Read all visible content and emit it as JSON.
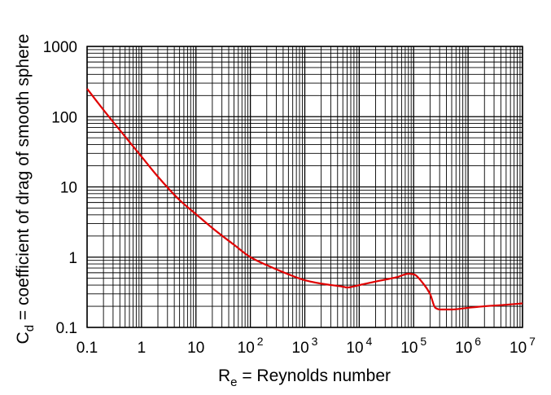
{
  "chart_data": {
    "type": "line",
    "xlabel": {
      "main": "R",
      "sub": "e",
      "rest": " = Reynolds number"
    },
    "ylabel": {
      "main": "C",
      "sub": "d",
      "rest": " = coefficient of drag of smooth sphere"
    },
    "x_scale": "log",
    "y_scale": "log",
    "xlim": [
      0.1,
      10000000
    ],
    "ylim": [
      0.1,
      1000
    ],
    "grid": true,
    "x_ticks": [
      {
        "value": 0.1,
        "base": "0.1",
        "exp": ""
      },
      {
        "value": 1,
        "base": "1",
        "exp": ""
      },
      {
        "value": 10,
        "base": "10",
        "exp": ""
      },
      {
        "value": 100,
        "base": "10",
        "exp": "2"
      },
      {
        "value": 1000,
        "base": "10",
        "exp": "3"
      },
      {
        "value": 10000,
        "base": "10",
        "exp": "4"
      },
      {
        "value": 100000,
        "base": "10",
        "exp": "5"
      },
      {
        "value": 1000000,
        "base": "10",
        "exp": "6"
      },
      {
        "value": 10000000,
        "base": "10",
        "exp": "7"
      }
    ],
    "y_ticks": [
      {
        "value": 0.1,
        "label": "0.1"
      },
      {
        "value": 1,
        "label": "1"
      },
      {
        "value": 10,
        "label": "10"
      },
      {
        "value": 100,
        "label": "100"
      },
      {
        "value": 1000,
        "label": "1000"
      }
    ],
    "series": [
      {
        "color": "#e00000",
        "x": [
          0.1,
          0.2,
          0.5,
          1,
          2,
          5,
          10,
          20,
          50,
          100,
          200,
          500,
          1000,
          2000,
          5000,
          6000,
          10000,
          20000,
          50000,
          80000,
          100000,
          150000,
          200000,
          250000,
          300000,
          500000,
          1000000,
          2000000,
          5000000,
          10000000
        ],
        "y": [
          250,
          125,
          52,
          27,
          14,
          6.5,
          4.1,
          2.6,
          1.5,
          1.0,
          0.77,
          0.57,
          0.47,
          0.42,
          0.38,
          0.37,
          0.4,
          0.45,
          0.52,
          0.58,
          0.57,
          0.42,
          0.3,
          0.19,
          0.18,
          0.18,
          0.19,
          0.2,
          0.21,
          0.22
        ]
      }
    ]
  }
}
